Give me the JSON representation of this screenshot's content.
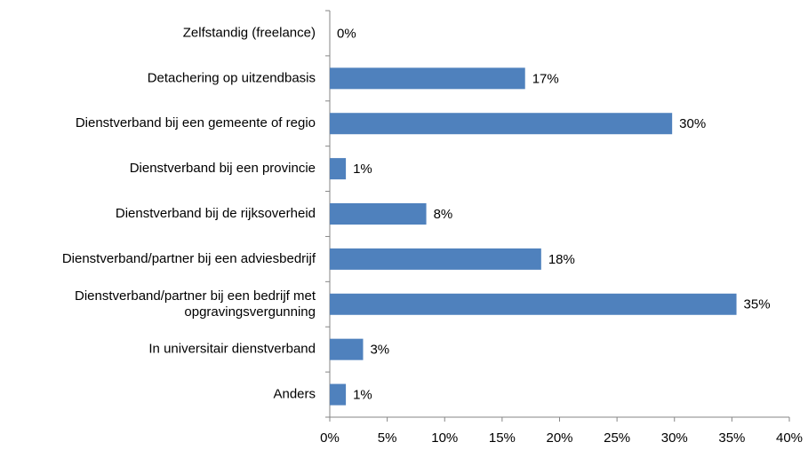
{
  "chart_data": {
    "type": "hbar",
    "categories": [
      "Zelfstandig (freelance)",
      "Detachering op uitzendbasis",
      "Dienstverband bij een gemeente of regio",
      "Dienstverband bij een provincie",
      "Dienstverband bij de rijksoverheid",
      "Dienstverband/partner bij een adviesbedrijf",
      "Dienstverband/partner bij een bedrijf met\nopgravingsvergunning",
      "In universitair dienstverband",
      "Anders"
    ],
    "values": [
      0,
      17,
      29.8,
      1.4,
      8.4,
      18.4,
      35.4,
      2.9,
      1.4
    ],
    "value_labels": [
      "0%",
      "17%",
      "30%",
      "1%",
      "8%",
      "18%",
      "35%",
      "3%",
      "1%"
    ],
    "color": "#4f81bd",
    "xlim": [
      0,
      40
    ],
    "xticks": [
      {
        "value": 0,
        "label": "0%"
      },
      {
        "value": 5,
        "label": "5%"
      },
      {
        "value": 10,
        "label": "10%"
      },
      {
        "value": 15,
        "label": "15%"
      },
      {
        "value": 20,
        "label": "20%"
      },
      {
        "value": 25,
        "label": "25%"
      },
      {
        "value": 30,
        "label": "30%"
      },
      {
        "value": 35,
        "label": "35%"
      },
      {
        "value": 40,
        "label": "40%"
      }
    ],
    "grid": false
  }
}
